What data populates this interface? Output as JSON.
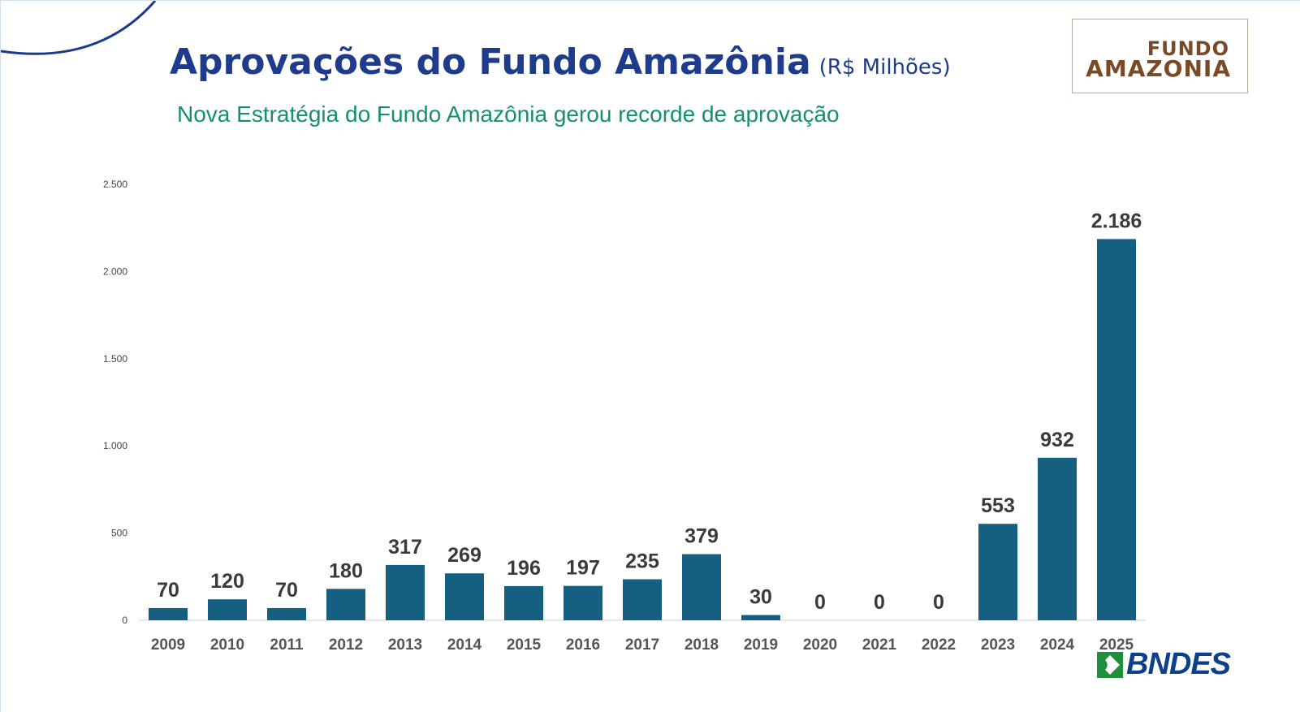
{
  "header": {
    "title": "Aprovações do Fundo Amazônia",
    "unit": "(R$ Milhões)",
    "subtitle": "Nova Estratégia do Fundo Amazônia gerou recorde de aprovação"
  },
  "logo": {
    "line1": "FUNDO",
    "line2": "AMAZONIA"
  },
  "footer": {
    "brand": "BNDES"
  },
  "colors": {
    "bar": "#155f80",
    "title": "#1f3c8c",
    "subtitle": "#14906e",
    "brand_blue": "#0c3f8c",
    "brand_green": "#1e8f3a"
  },
  "chart_data": {
    "type": "bar",
    "categories": [
      "2009",
      "2010",
      "2011",
      "2012",
      "2013",
      "2014",
      "2015",
      "2016",
      "2017",
      "2018",
      "2019",
      "2020",
      "2021",
      "2022",
      "2023",
      "2024",
      "2025"
    ],
    "values": [
      70,
      120,
      70,
      180,
      317,
      269,
      196,
      197,
      235,
      379,
      30,
      0,
      0,
      0,
      553,
      932,
      2186
    ],
    "data_labels": [
      "70",
      "120",
      "70",
      "180",
      "317",
      "269",
      "196",
      "197",
      "235",
      "379",
      "30",
      "0",
      "0",
      "0",
      "553",
      "932",
      "2.186"
    ],
    "yticks": [
      0,
      500,
      1000,
      1500,
      2000,
      2500
    ],
    "ytick_labels": [
      "0",
      "500",
      "1.000",
      "1.500",
      "2.000",
      "2.500"
    ],
    "ylim": [
      0,
      2500
    ],
    "grid": false,
    "xlabel": "",
    "ylabel": ""
  }
}
